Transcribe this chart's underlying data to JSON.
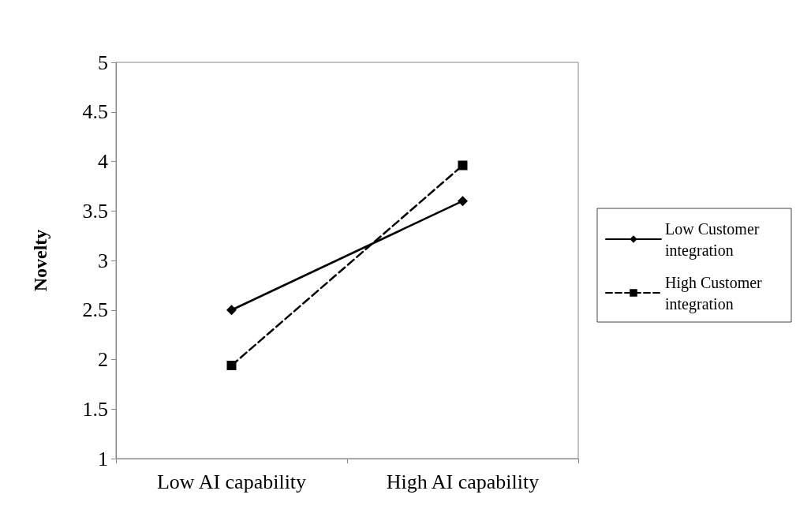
{
  "chart_data": {
    "type": "line",
    "ylabel": "Novelty",
    "categories": [
      "Low AI capability",
      "High AI capability"
    ],
    "ylim": [
      1,
      5
    ],
    "yticks": [
      1,
      1.5,
      2,
      2.5,
      3,
      3.5,
      4,
      4.5,
      5
    ],
    "grid": false,
    "legend": "right",
    "series": [
      {
        "name": "Low Customer integration",
        "color": "#000000",
        "values": [
          2.5,
          3.6
        ],
        "marker": "diamond",
        "line_style": "solid"
      },
      {
        "name": "High Customer integration",
        "color": "#000000",
        "values": [
          1.94,
          3.96
        ],
        "marker": "square",
        "line_style": "dashed"
      }
    ]
  }
}
